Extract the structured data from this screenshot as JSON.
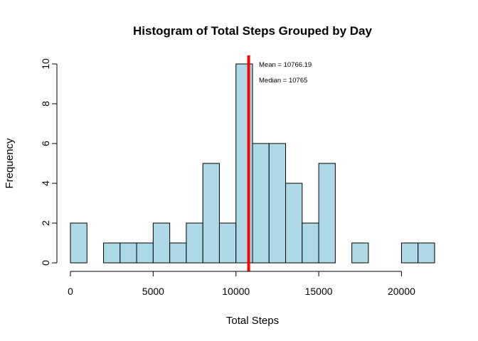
{
  "chart_data": {
    "type": "bar",
    "title": "Histogram of Total Steps Grouped by Day",
    "xlabel": "Total Steps",
    "ylabel": "Frequency",
    "xlim": [
      0,
      22000
    ],
    "ylim": [
      0,
      10
    ],
    "bin_width": 1000,
    "bins": [
      {
        "start": 0,
        "end": 1000,
        "count": 2
      },
      {
        "start": 1000,
        "end": 2000,
        "count": 0
      },
      {
        "start": 2000,
        "end": 3000,
        "count": 1
      },
      {
        "start": 3000,
        "end": 4000,
        "count": 1
      },
      {
        "start": 4000,
        "end": 5000,
        "count": 1
      },
      {
        "start": 5000,
        "end": 6000,
        "count": 2
      },
      {
        "start": 6000,
        "end": 7000,
        "count": 1
      },
      {
        "start": 7000,
        "end": 8000,
        "count": 2
      },
      {
        "start": 8000,
        "end": 9000,
        "count": 5
      },
      {
        "start": 9000,
        "end": 10000,
        "count": 2
      },
      {
        "start": 10000,
        "end": 11000,
        "count": 10
      },
      {
        "start": 11000,
        "end": 12000,
        "count": 6
      },
      {
        "start": 12000,
        "end": 13000,
        "count": 6
      },
      {
        "start": 13000,
        "end": 14000,
        "count": 4
      },
      {
        "start": 14000,
        "end": 15000,
        "count": 2
      },
      {
        "start": 15000,
        "end": 16000,
        "count": 5
      },
      {
        "start": 16000,
        "end": 17000,
        "count": 0
      },
      {
        "start": 17000,
        "end": 18000,
        "count": 1
      },
      {
        "start": 18000,
        "end": 19000,
        "count": 0
      },
      {
        "start": 19000,
        "end": 20000,
        "count": 0
      },
      {
        "start": 20000,
        "end": 21000,
        "count": 1
      },
      {
        "start": 21000,
        "end": 22000,
        "count": 1
      }
    ],
    "x_ticks": [
      0,
      5000,
      10000,
      15000,
      20000
    ],
    "x_tick_labels": [
      "0",
      "5000",
      "10000",
      "15000",
      "20000"
    ],
    "y_ticks": [
      0,
      2,
      4,
      6,
      8,
      10
    ],
    "y_tick_labels": [
      "0",
      "2",
      "4",
      "6",
      "8",
      "10"
    ],
    "vline": {
      "x": 10766.19,
      "color": "#ff0000"
    },
    "annotations": [
      "Mean = 10766.19",
      "Median = 10765"
    ],
    "bar_color": "#add8e6",
    "grid": false,
    "legend": "none"
  }
}
